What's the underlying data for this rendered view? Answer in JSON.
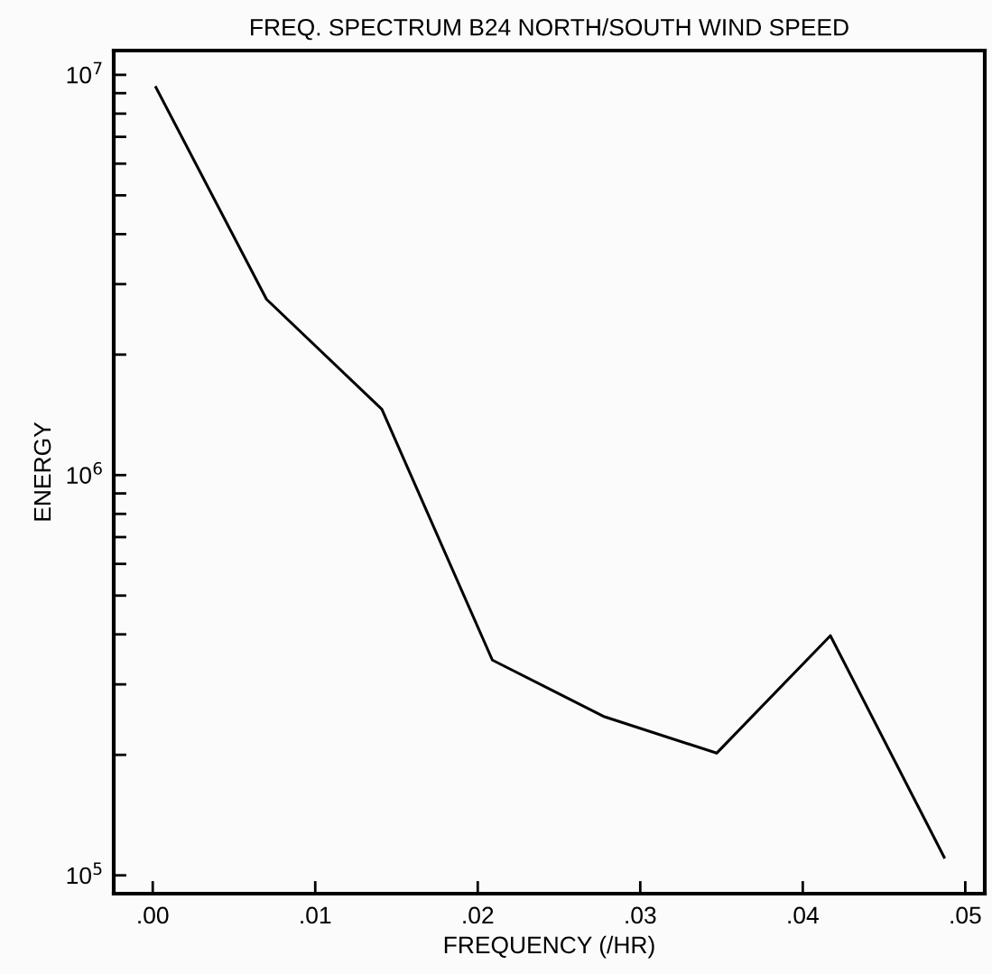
{
  "chart_data": {
    "type": "line",
    "title": "FREQ. SPECTRUM B24 NORTH/SOUTH WIND SPEED",
    "xlabel": "FREQUENCY (/HR)",
    "ylabel": "ENERGY",
    "x": [
      0.0002,
      0.007,
      0.0141,
      0.0209,
      0.0278,
      0.0347,
      0.0417,
      0.0487
    ],
    "series": [
      {
        "color": "#000000",
        "values": [
          9300000,
          2750000,
          1460000,
          345000,
          249000,
          202000,
          397000,
          111000
        ]
      }
    ],
    "log": true,
    "xlim": [
      -0.0024,
      0.0512
    ],
    "ylim": [
      90000,
      11500000
    ],
    "xticks": [
      {
        "value": 0.0,
        "label": ".00"
      },
      {
        "value": 0.01,
        "label": ".01"
      },
      {
        "value": 0.02,
        "label": ".02"
      },
      {
        "value": 0.03,
        "label": ".03"
      },
      {
        "value": 0.04,
        "label": ".04"
      },
      {
        "value": 0.05,
        "label": ".05"
      }
    ],
    "yticks": [
      {
        "value": 100000,
        "label": "10$^{5}$"
      },
      {
        "value": 200000,
        "label": null
      },
      {
        "value": 300000,
        "label": null
      },
      {
        "value": 400000,
        "label": null
      },
      {
        "value": 500000,
        "label": null
      },
      {
        "value": 600000,
        "label": null
      },
      {
        "value": 700000,
        "label": null
      },
      {
        "value": 800000,
        "label": null
      },
      {
        "value": 900000,
        "label": null
      },
      {
        "value": 1000000,
        "label": "10$^{6}$"
      },
      {
        "value": 2000000,
        "label": null
      },
      {
        "value": 3000000,
        "label": null
      },
      {
        "value": 4000000,
        "label": null
      },
      {
        "value": 5000000,
        "label": null
      },
      {
        "value": 6000000,
        "label": null
      },
      {
        "value": 7000000,
        "label": null
      },
      {
        "value": 8000000,
        "label": null
      },
      {
        "value": 9000000,
        "label": null
      },
      {
        "value": 10000000,
        "label": "10$^{7}$"
      }
    ],
    "grid": false,
    "marker": "none",
    "line_style": "solid"
  }
}
